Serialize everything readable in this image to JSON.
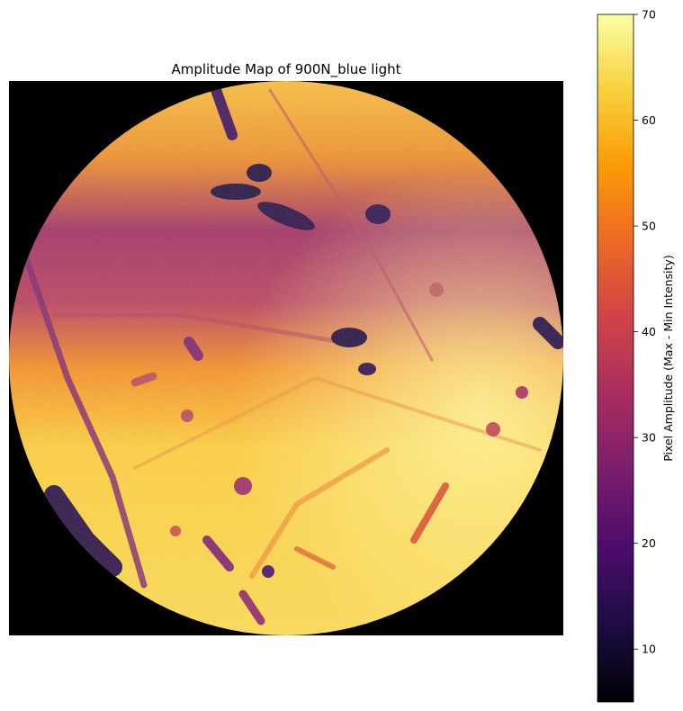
{
  "chart_data": {
    "type": "heatmap",
    "title": "Amplitude Map of 900N_blue light",
    "xlabel": "",
    "ylabel": "",
    "colormap": "inferno",
    "colorbar": {
      "label": "Pixel Amplitude (Max - Min Intensity)",
      "range": [
        5,
        70
      ],
      "ticks": [
        10,
        20,
        30,
        40,
        50,
        60,
        70
      ]
    },
    "region": "circular field of view on black background",
    "axes_visible": false,
    "bands": [
      {
        "name": "upper rim",
        "amplitude": 58
      },
      {
        "name": "upper-middle band",
        "amplitude": 34
      },
      {
        "name": "lower field",
        "amplitude": 63
      }
    ]
  },
  "colors": {
    "background": "#000000",
    "inferno_stops": [
      "#000004",
      "#1b0c41",
      "#4a0c6b",
      "#781c6d",
      "#a52c60",
      "#cf4446",
      "#ed6925",
      "#fb9b06",
      "#f7d13d",
      "#fcffa4"
    ]
  }
}
